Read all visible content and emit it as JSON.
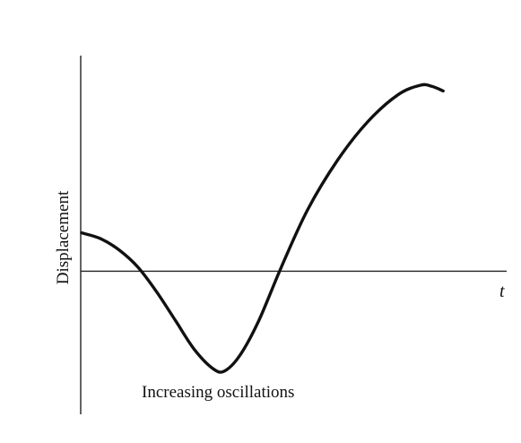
{
  "chart_data": {
    "type": "line",
    "title": "",
    "xlabel": "t",
    "ylabel": "Displacement",
    "annotation": "Increasing oscillations",
    "grid": false,
    "legend": "none",
    "line_color": "#111111",
    "xlim": [
      0,
      10
    ],
    "ylim": [
      -2.75,
      4.85
    ],
    "series": [
      {
        "x": [
          0,
          0.5,
          1.0,
          1.5,
          2.0,
          2.5,
          3.0,
          3.5,
          3.8,
          4.2,
          4.7,
          5.3,
          6.0,
          6.8,
          7.6,
          8.4,
          9.0,
          9.3,
          9.6
        ],
        "y": [
          1.0,
          0.85,
          0.55,
          0.1,
          -0.55,
          -1.3,
          -2.05,
          -2.55,
          -2.6,
          -2.2,
          -1.3,
          0.1,
          1.6,
          2.9,
          3.9,
          4.6,
          4.85,
          4.82,
          4.7
        ]
      }
    ]
  }
}
